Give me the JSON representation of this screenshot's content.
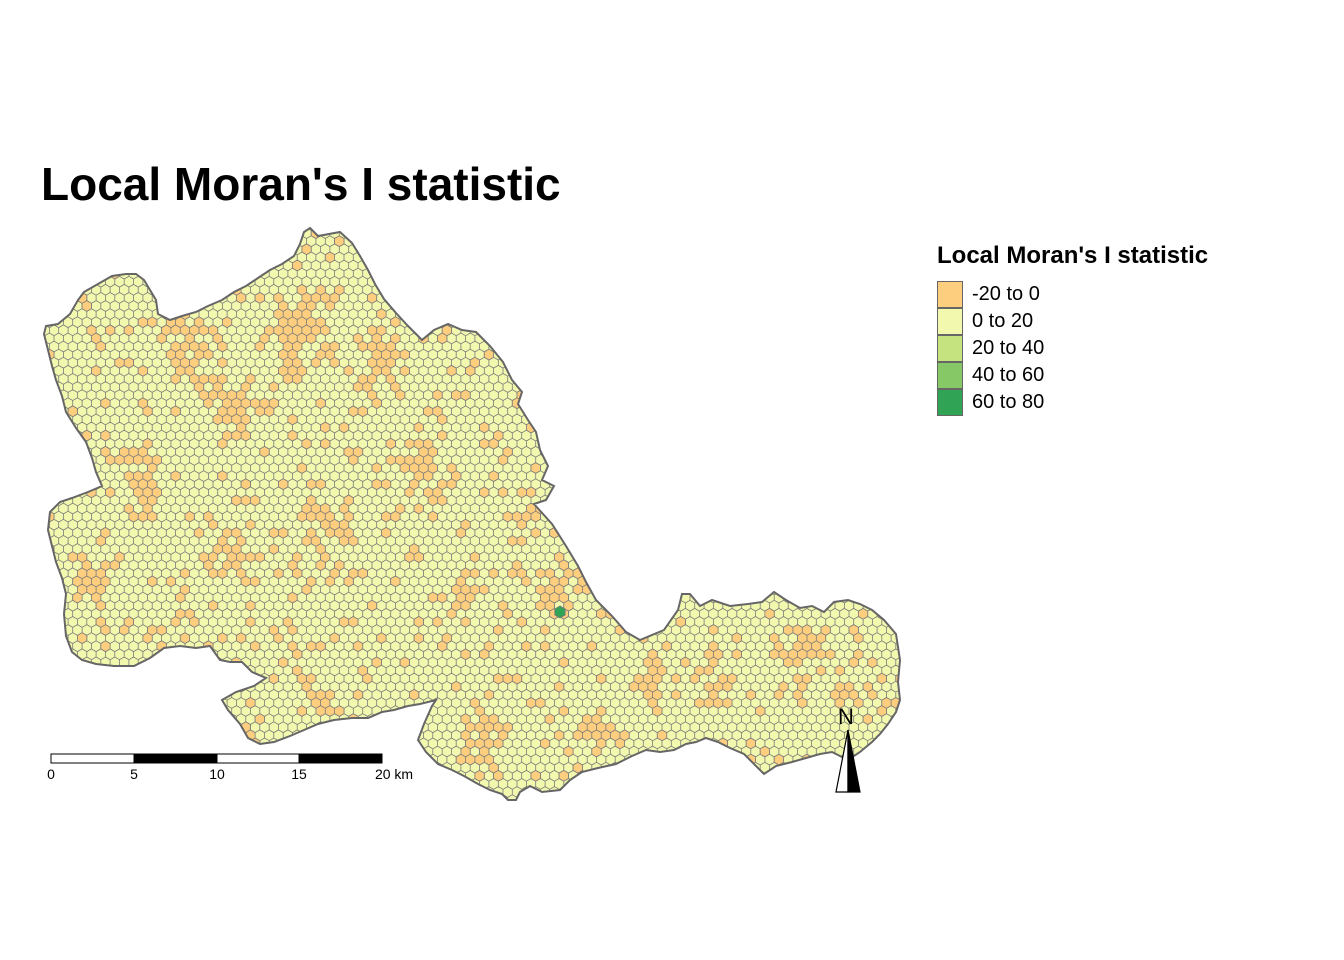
{
  "title": "Local Moran's I statistic",
  "legend": {
    "title": "Local Moran's I statistic",
    "items": [
      {
        "label": "-20 to 0",
        "color": "#FDCE7E"
      },
      {
        "label": "0 to 20",
        "color": "#F2F9AE"
      },
      {
        "label": "20 to 40",
        "color": "#C5E480"
      },
      {
        "label": "40 to 60",
        "color": "#85C865"
      },
      {
        "label": "60 to 80",
        "color": "#31A354"
      }
    ]
  },
  "scale_bar": {
    "ticks": [
      "0",
      "5",
      "10",
      "15",
      "20 km"
    ]
  },
  "north_arrow": {
    "label": "N"
  },
  "colors": {
    "boundary": "#666666",
    "hex_outline": "#7A7A7A",
    "low": "#FDCE7E",
    "mid": "#F2F9AE",
    "high_spot": "#31A354"
  }
}
